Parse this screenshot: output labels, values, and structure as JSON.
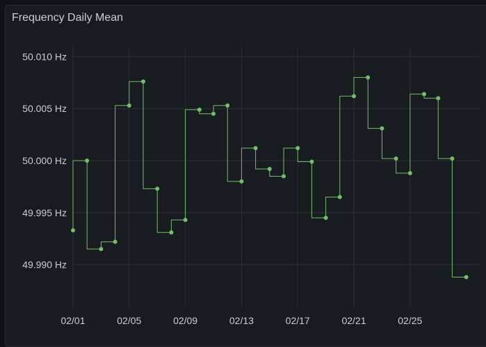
{
  "panel": {
    "title": "Frequency Daily Mean"
  },
  "colors": {
    "series": "#73bf69",
    "grid": "#2c2f35",
    "text": "#ccccdc"
  },
  "chart_data": {
    "type": "line",
    "step": "before",
    "title": "Frequency Daily Mean",
    "xlabel": "",
    "ylabel": "",
    "unit": "Hz",
    "ylim": [
      49.9875,
      50.0115
    ],
    "yticks": [
      "50.010 Hz",
      "50.005 Hz",
      "50.000 Hz",
      "49.995 Hz",
      "49.990 Hz"
    ],
    "ytick_values": [
      50.01,
      50.005,
      50.0,
      49.995,
      49.99
    ],
    "xticks": [
      "02/01",
      "02/05",
      "02/09",
      "02/13",
      "02/17",
      "02/21",
      "02/25"
    ],
    "xtick_index": [
      0,
      4,
      8,
      12,
      16,
      20,
      24
    ],
    "grid": true,
    "series": [
      {
        "name": "Frequency Daily Mean",
        "x": [
          "02/01",
          "02/02",
          "02/03",
          "02/04",
          "02/05",
          "02/06",
          "02/07",
          "02/08",
          "02/09",
          "02/10",
          "02/11",
          "02/12",
          "02/13",
          "02/14",
          "02/15",
          "02/16",
          "02/17",
          "02/18",
          "02/19",
          "02/20",
          "02/21",
          "02/22",
          "02/23",
          "02/24",
          "02/25",
          "02/26",
          "02/27",
          "02/28",
          "02/29"
        ],
        "values": [
          49.9933,
          50.0,
          49.9915,
          49.9922,
          50.0053,
          50.0076,
          49.9973,
          49.9931,
          49.9943,
          50.0049,
          50.0045,
          50.0053,
          49.998,
          50.0012,
          49.9992,
          49.9985,
          50.0012,
          49.9999,
          49.9945,
          49.9965,
          50.0062,
          50.008,
          50.0031,
          50.0002,
          49.9988,
          50.0064,
          50.006,
          50.0002,
          49.9888
        ]
      }
    ]
  }
}
